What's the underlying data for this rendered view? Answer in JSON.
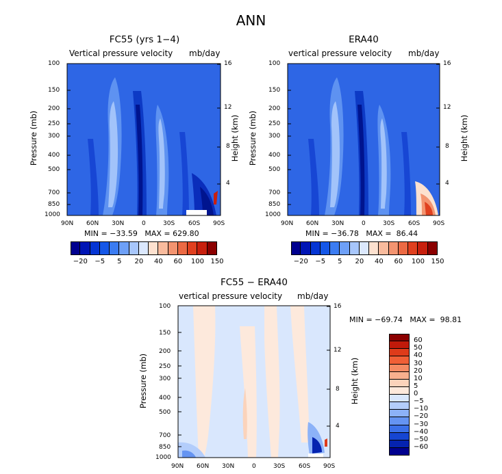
{
  "page": {
    "title": "ANN"
  },
  "panels": {
    "fc55": {
      "title": "FC55 (yrs 1−4)",
      "subtitle_left": "Vertical pressure velocity",
      "subtitle_right": "mb/day",
      "stats": "MIN = −33.59   MAX = 629.80"
    },
    "era40": {
      "title": "ERA40",
      "subtitle_left": "vertical pressure velocity",
      "subtitle_right": "mb/day",
      "stats": "MIN = −36.78   MAX =  86.44"
    },
    "diff": {
      "title": "FC55 − ERA40",
      "subtitle_left": "vertical pressure velocity",
      "subtitle_right": "mb/day",
      "stats": "MIN = −69.74   MAX =  98.81"
    }
  },
  "axes": {
    "pressure_label": "Pressure (mb)",
    "height_label": "Height (km)",
    "pressure_ticks": [
      "100",
      "150",
      "200",
      "250",
      "300",
      "400",
      "500",
      "700",
      "850",
      "1000"
    ],
    "height_ticks": [
      "16",
      "12",
      "8",
      "4"
    ],
    "lat_ticks": [
      "90N",
      "60N",
      "30N",
      "0",
      "30S",
      "60S",
      "90S"
    ]
  },
  "colorbars": {
    "top_labels": [
      "−20",
      "−5",
      "5",
      "20",
      "40",
      "60",
      "100",
      "150"
    ],
    "top_colors": [
      "#00008f",
      "#0015b5",
      "#0535d4",
      "#1557e8",
      "#3b7cf2",
      "#6ea0f7",
      "#a7c6fb",
      "#dbe8fd",
      "#fde1cf",
      "#f9bb9d",
      "#f39470",
      "#ec6a44",
      "#e0401f",
      "#c8200e",
      "#8b0000"
    ],
    "diff_labels": [
      "60",
      "50",
      "40",
      "30",
      "20",
      "10",
      "5",
      "0",
      "−5",
      "−10",
      "−20",
      "−30",
      "−40",
      "−50",
      "−60"
    ],
    "diff_colors": [
      "#8b0000",
      "#c01a0a",
      "#de3b1a",
      "#f05f36",
      "#f58a62",
      "#f8b08e",
      "#fbd3bb",
      "#fde9dc",
      "#d9e7fd",
      "#b3cdfb",
      "#8cb2f8",
      "#6594f2",
      "#3b70e8",
      "#1646d2",
      "#0523b0",
      "#00008f"
    ]
  },
  "chart_data": [
    {
      "type": "heatmap",
      "title": "FC55 (yrs 1−4)",
      "xlabel": "",
      "ylabel": "Pressure (mb)",
      "y2label": "Height (km)",
      "x_ticks": [
        "90N",
        "60N",
        "30N",
        "0",
        "30S",
        "60S",
        "90S"
      ],
      "y_ticks": [
        100,
        150,
        200,
        250,
        300,
        400,
        500,
        700,
        850,
        1000
      ],
      "y_scale": "log",
      "ylim": [
        1000,
        100
      ],
      "units": "mb/day",
      "min": -33.59,
      "max": 629.8
    },
    {
      "type": "heatmap",
      "title": "ERA40",
      "ylabel": "Pressure (mb)",
      "y2label": "Height (km)",
      "x_ticks": [
        "90N",
        "60N",
        "30N",
        "0",
        "30S",
        "60S",
        "90S"
      ],
      "y_ticks": [
        100,
        150,
        200,
        250,
        300,
        400,
        500,
        700,
        850,
        1000
      ],
      "y_scale": "log",
      "ylim": [
        1000,
        100
      ],
      "units": "mb/day",
      "min": -36.78,
      "max": 86.44
    },
    {
      "type": "heatmap",
      "title": "FC55 − ERA40",
      "ylabel": "Pressure (mb)",
      "y2label": "Height (km)",
      "x_ticks": [
        "90N",
        "60N",
        "30N",
        "0",
        "30S",
        "60S",
        "90S"
      ],
      "y_ticks": [
        100,
        150,
        200,
        250,
        300,
        400,
        500,
        700,
        850,
        1000
      ],
      "y_scale": "log",
      "ylim": [
        1000,
        100
      ],
      "units": "mb/day",
      "min": -69.74,
      "max": 98.81
    }
  ]
}
